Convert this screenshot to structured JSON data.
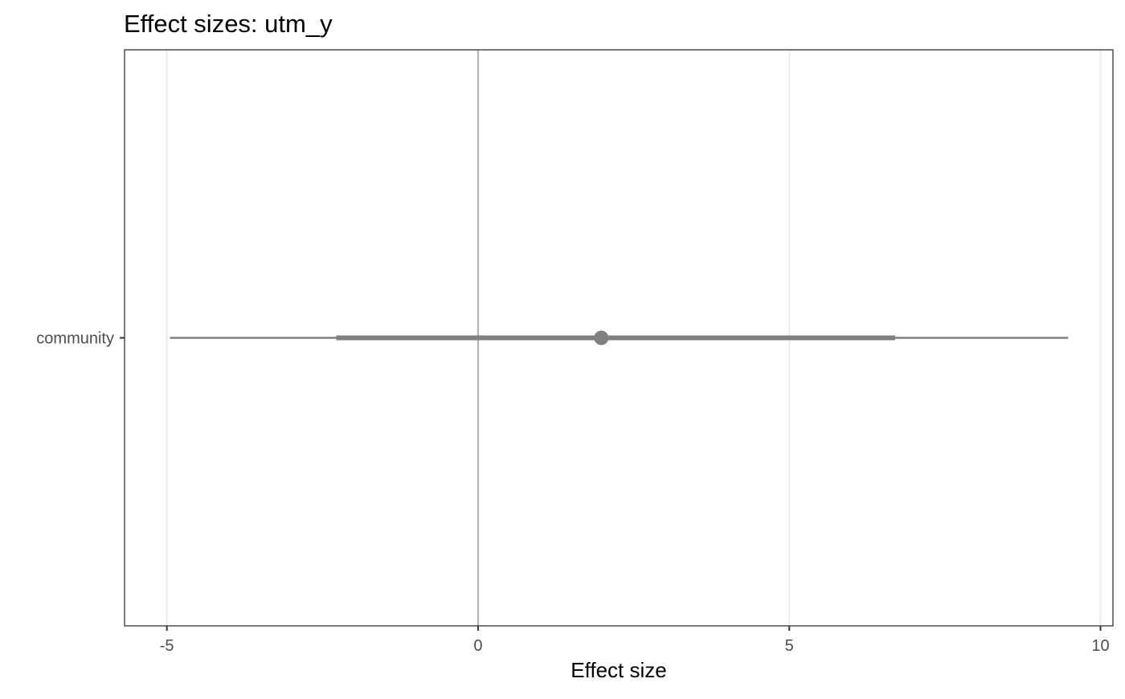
{
  "chart_data": {
    "type": "forest",
    "title": "Effect sizes: utm_y",
    "xlabel": "Effect size",
    "ylabel": "",
    "xlim": [
      -5.68,
      10.2
    ],
    "x_ticks": [
      -5,
      0,
      5,
      10
    ],
    "x_tick_labels": [
      "-5",
      "0",
      "5",
      "10"
    ],
    "reference_line": 0,
    "grid": true,
    "legend": "none",
    "colors": {
      "estimate": "#808080",
      "reference_line": "#b3b3b3",
      "grid": "#ebebeb",
      "panel_border": "#333333"
    },
    "rows": [
      {
        "label": "community",
        "estimate": 1.98,
        "inner_interval": [
          -2.28,
          6.7
        ],
        "outer_interval": [
          -4.95,
          9.48
        ]
      }
    ]
  }
}
